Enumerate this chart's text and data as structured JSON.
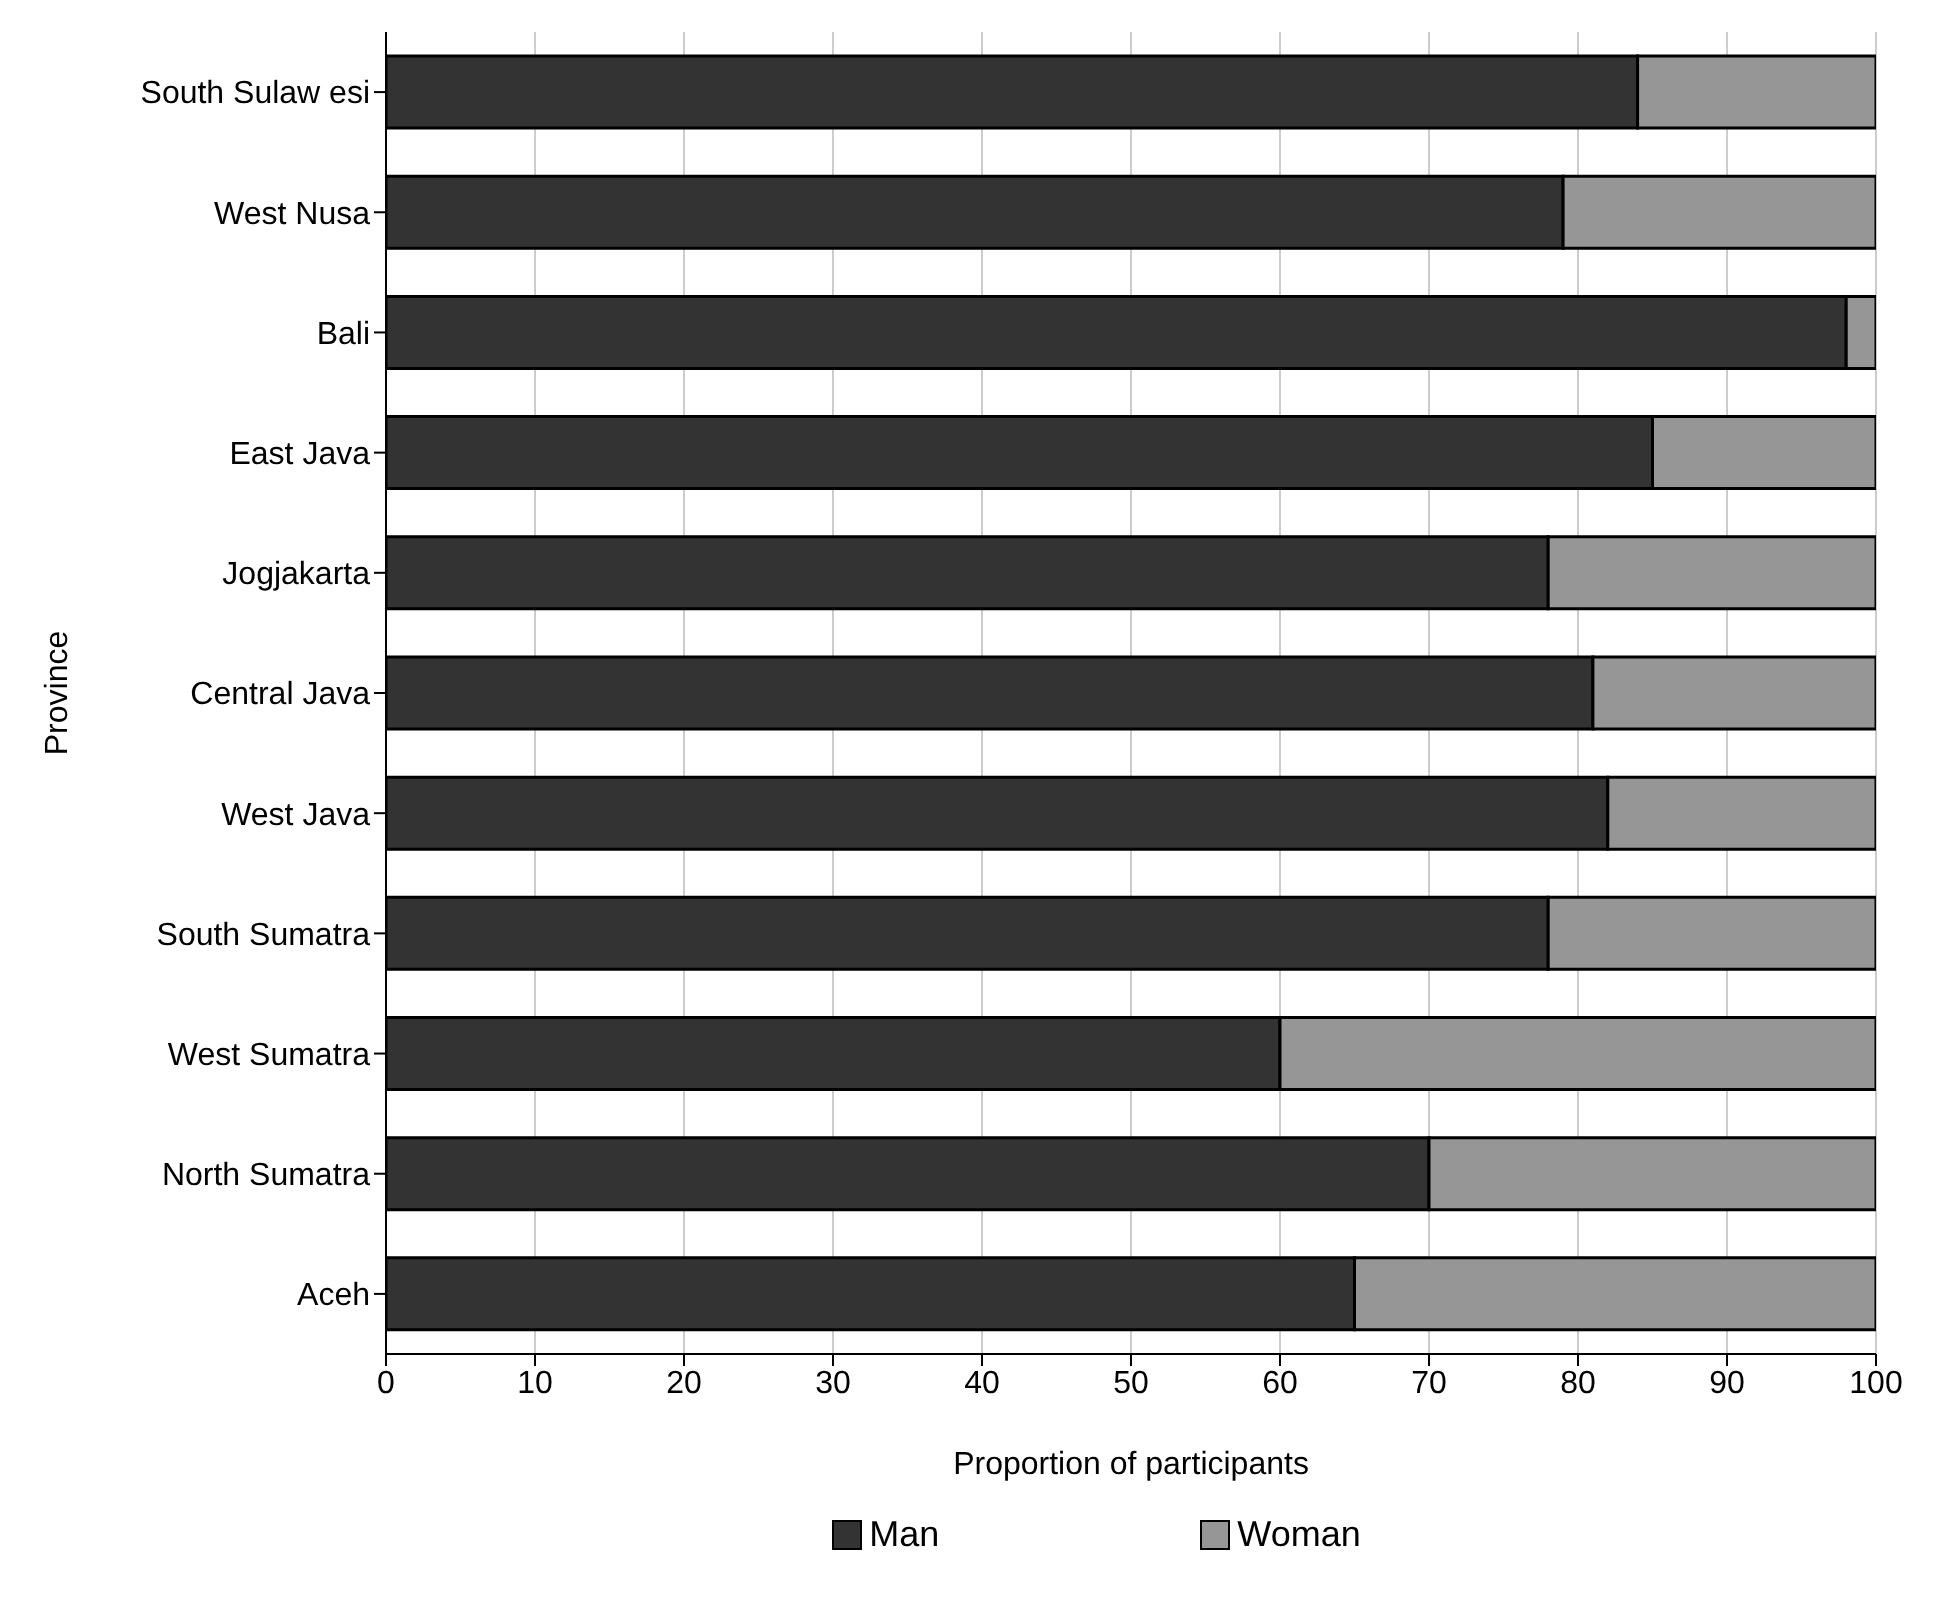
{
  "chart_data": {
    "type": "bar",
    "orientation": "horizontal",
    "stacked": true,
    "xlabel": "Proportion of participants",
    "ylabel": "Province",
    "categories": [
      "South Sulaw esi",
      "West Nusa",
      "Bali",
      "East Java",
      "Jogjakarta",
      "Central Java",
      "West Java",
      "South Sumatra",
      "West Sumatra",
      "North Sumatra",
      "Aceh"
    ],
    "series": [
      {
        "name": "Man",
        "color": "#333333",
        "values": [
          84,
          79,
          98,
          85,
          78,
          81,
          82,
          78,
          60,
          70,
          65
        ]
      },
      {
        "name": "Woman",
        "color": "#969696",
        "values": [
          16,
          21,
          2,
          15,
          22,
          19,
          18,
          22,
          40,
          30,
          35
        ]
      }
    ],
    "xlim": [
      0,
      100
    ],
    "xticks": [
      0,
      10,
      20,
      30,
      40,
      50,
      60,
      70,
      80,
      90,
      100
    ],
    "grid": "x",
    "legend": "bottom"
  }
}
